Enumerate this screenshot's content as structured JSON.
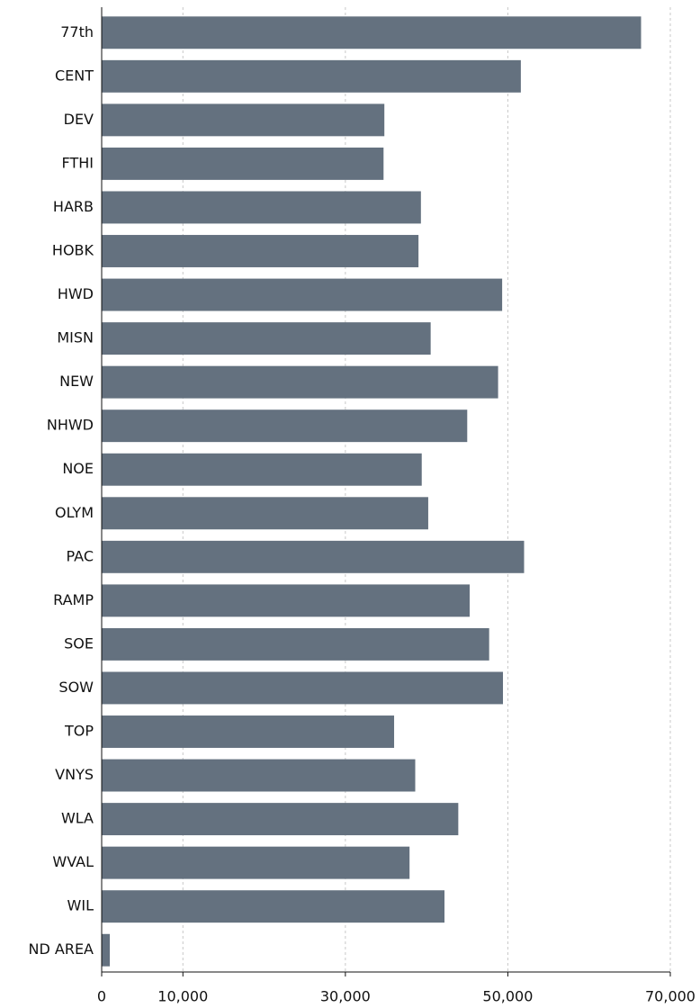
{
  "chart_data": {
    "type": "barh",
    "categories": [
      "77th",
      "CENT",
      "DEV",
      "FTHI",
      "HARB",
      "HOBK",
      "HWD",
      "MISN",
      "NEW",
      "NHWD",
      "NOE",
      "OLYM",
      "PAC",
      "RAMP",
      "SOE",
      "SOW",
      "TOP",
      "VNYS",
      "WLA",
      "WVAL",
      "WIL",
      "ND AREA"
    ],
    "values": [
      66400,
      51600,
      34800,
      34700,
      39300,
      39000,
      49300,
      40500,
      48800,
      45000,
      39400,
      40200,
      52000,
      45300,
      47700,
      49400,
      36000,
      38600,
      43900,
      37900,
      42200,
      1000
    ],
    "color": "#64717f",
    "xlim": [
      0,
      70000
    ],
    "xticks": [
      0,
      {
        "value": 10000,
        "label": "10,000"
      },
      {
        "value": 30000,
        "label": "30,000"
      },
      {
        "value": 50000,
        "label": "50,000"
      },
      {
        "value": 70000,
        "label": "70,000"
      }
    ],
    "grid": true
  }
}
